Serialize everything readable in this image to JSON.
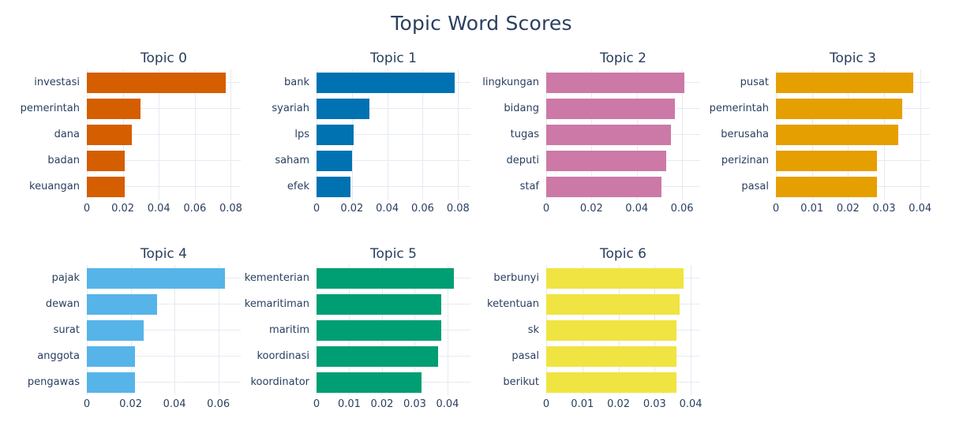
{
  "figure": {
    "title": "Topic Word Scores"
  },
  "style": {
    "text_color": "#2a3f5f",
    "grid_color": "#e5eaf2",
    "background": "#ffffff"
  },
  "chart_data": [
    {
      "type": "bar",
      "orientation": "horizontal",
      "title": "Topic 0",
      "categories": [
        "investasi",
        "pemerintah",
        "dana",
        "badan",
        "keuangan"
      ],
      "values": [
        0.077,
        0.03,
        0.025,
        0.021,
        0.021
      ],
      "color": "#D55E00",
      "ticks": [
        0,
        0.02,
        0.04,
        0.06,
        0.08
      ],
      "tick_labels": [
        "0",
        "0.02",
        "0.04",
        "0.06",
        "0.08"
      ],
      "xlim": [
        0,
        0.0855
      ],
      "grid": true,
      "legend": false
    },
    {
      "type": "bar",
      "orientation": "horizontal",
      "title": "Topic 1",
      "categories": [
        "bank",
        "syariah",
        "lps",
        "saham",
        "efek"
      ],
      "values": [
        0.078,
        0.03,
        0.021,
        0.02,
        0.019
      ],
      "color": "#0072B2",
      "ticks": [
        0,
        0.02,
        0.04,
        0.06,
        0.08
      ],
      "tick_labels": [
        "0",
        "0.02",
        "0.04",
        "0.06",
        "0.08"
      ],
      "xlim": [
        0,
        0.087
      ],
      "grid": true,
      "legend": false
    },
    {
      "type": "bar",
      "orientation": "horizontal",
      "title": "Topic 2",
      "categories": [
        "lingkungan",
        "bidang",
        "tugas",
        "deputi",
        "staf"
      ],
      "values": [
        0.061,
        0.057,
        0.055,
        0.053,
        0.051
      ],
      "color": "#CC79A7",
      "ticks": [
        0,
        0.02,
        0.04,
        0.06
      ],
      "tick_labels": [
        "0",
        "0.02",
        "0.04",
        "0.06"
      ],
      "xlim": [
        0,
        0.068
      ],
      "grid": true,
      "legend": false
    },
    {
      "type": "bar",
      "orientation": "horizontal",
      "title": "Topic 3",
      "categories": [
        "pusat",
        "pemerintah",
        "berusaha",
        "perizinan",
        "pasal"
      ],
      "values": [
        0.038,
        0.035,
        0.034,
        0.028,
        0.028
      ],
      "color": "#E69F00",
      "ticks": [
        0,
        0.01,
        0.02,
        0.03,
        0.04
      ],
      "tick_labels": [
        "0",
        "0.01",
        "0.02",
        "0.03",
        "0.04"
      ],
      "xlim": [
        0,
        0.0427
      ],
      "grid": true,
      "legend": false
    },
    {
      "type": "bar",
      "orientation": "horizontal",
      "title": "Topic 4",
      "categories": [
        "pajak",
        "dewan",
        "surat",
        "anggota",
        "pengawas"
      ],
      "values": [
        0.063,
        0.032,
        0.026,
        0.022,
        0.022
      ],
      "color": "#56B4E9",
      "ticks": [
        0,
        0.02,
        0.04,
        0.06
      ],
      "tick_labels": [
        "0",
        "0.02",
        "0.04",
        "0.06"
      ],
      "xlim": [
        0,
        0.0702
      ],
      "grid": true,
      "legend": false
    },
    {
      "type": "bar",
      "orientation": "horizontal",
      "title": "Topic 5",
      "categories": [
        "kementerian",
        "kemaritiman",
        "maritim",
        "koordinasi",
        "koordinator"
      ],
      "values": [
        0.042,
        0.038,
        0.038,
        0.037,
        0.032
      ],
      "color": "#009E73",
      "ticks": [
        0,
        0.01,
        0.02,
        0.03,
        0.04
      ],
      "tick_labels": [
        "0",
        "0.01",
        "0.02",
        "0.03",
        "0.04"
      ],
      "xlim": [
        0,
        0.047
      ],
      "grid": true,
      "legend": false
    },
    {
      "type": "bar",
      "orientation": "horizontal",
      "title": "Topic 6",
      "categories": [
        "berbunyi",
        "ketentuan",
        "sk",
        "pasal",
        "berikut"
      ],
      "values": [
        0.038,
        0.037,
        0.036,
        0.036,
        0.036
      ],
      "color": "#F0E442",
      "ticks": [
        0,
        0.01,
        0.02,
        0.03,
        0.04
      ],
      "tick_labels": [
        "0",
        "0.01",
        "0.02",
        "0.03",
        "0.04"
      ],
      "xlim": [
        0,
        0.0426
      ],
      "grid": true,
      "legend": false
    }
  ]
}
